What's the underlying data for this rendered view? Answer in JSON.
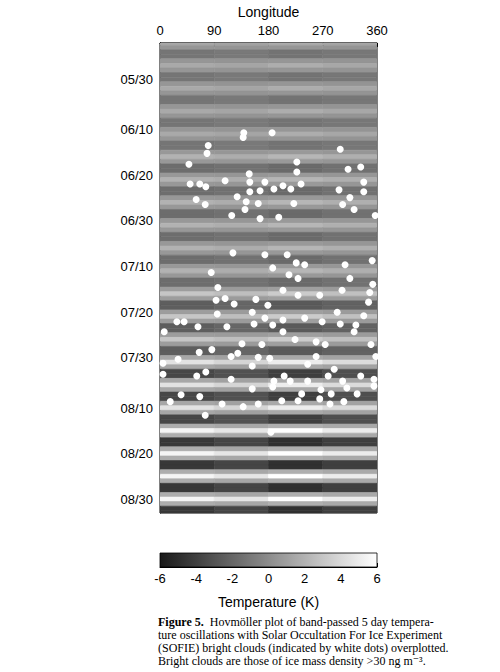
{
  "chart_data": {
    "type": "heatmap",
    "xlabel": "Longitude",
    "xlim": [
      0,
      360
    ],
    "xticks": [
      0,
      90,
      180,
      270,
      360
    ],
    "ylim": [
      142,
      245
    ],
    "yticks": [
      {
        "value": 150,
        "label": "05/30"
      },
      {
        "value": 161,
        "label": "06/10"
      },
      {
        "value": 171,
        "label": "06/20"
      },
      {
        "value": 181,
        "label": "06/30"
      },
      {
        "value": 191,
        "label": "07/10"
      },
      {
        "value": 201,
        "label": "07/20"
      },
      {
        "value": 211,
        "label": "07/30"
      },
      {
        "value": 222,
        "label": "08/10"
      },
      {
        "value": 232,
        "label": "08/20"
      },
      {
        "value": 242,
        "label": "08/30"
      }
    ],
    "grid": false,
    "heatmap": {
      "x": [
        45,
        135,
        225,
        315
      ],
      "y": [
        142,
        143,
        144,
        145,
        146,
        147,
        148,
        149,
        150,
        151,
        152,
        153,
        154,
        155,
        156,
        157,
        158,
        159,
        160,
        161,
        162,
        163,
        164,
        165,
        166,
        167,
        168,
        169,
        170,
        171,
        172,
        173,
        174,
        175,
        176,
        177,
        178,
        179,
        180,
        181,
        182,
        183,
        184,
        185,
        186,
        187,
        188,
        189,
        190,
        191,
        192,
        193,
        194,
        195,
        196,
        197,
        198,
        199,
        200,
        201,
        202,
        203,
        204,
        205,
        206,
        207,
        208,
        209,
        210,
        211,
        212,
        213,
        214,
        215,
        216,
        217,
        218,
        219,
        220,
        221,
        222,
        223,
        224,
        225,
        226,
        227,
        228,
        229,
        230,
        231,
        232,
        233,
        234,
        235,
        236,
        237,
        238,
        239,
        240,
        241,
        242,
        243,
        244,
        245
      ],
      "values": [
        [
          1.5,
          1.3,
          1.7,
          1.4
        ],
        [
          0.5,
          0.4,
          0.5,
          0.4
        ],
        [
          -1.2,
          -1,
          -1.3,
          -1.1
        ],
        [
          -1.2,
          -1,
          -1.3,
          -1.1
        ],
        [
          0.5,
          0.4,
          0.5,
          0.4
        ],
        [
          1.5,
          1.3,
          1.7,
          1.4
        ],
        [
          0.5,
          0.4,
          0.5,
          0.4
        ],
        [
          -1.2,
          -1,
          -1.3,
          -1.1
        ],
        [
          -1.2,
          -1,
          -1.3,
          -1.1
        ],
        [
          0.5,
          0.4,
          0.5,
          0.4
        ],
        [
          1.5,
          1.3,
          1.7,
          1.4
        ],
        [
          0.5,
          0.4,
          0.5,
          0.4
        ],
        [
          -1.2,
          -1,
          -1.3,
          -1.1
        ],
        [
          -1.2,
          -1,
          -1.3,
          -1.1
        ],
        [
          0.5,
          0.4,
          0.5,
          0.4
        ],
        [
          1.5,
          1.3,
          1.7,
          1.4
        ],
        [
          0.5,
          0.4,
          0.5,
          0.4
        ],
        [
          -1.2,
          -1,
          -1.3,
          -1.1
        ],
        [
          -1.2,
          -1,
          -1.3,
          -1.1
        ],
        [
          0.5,
          0.4,
          0.5,
          0.4
        ],
        [
          1.5,
          1.3,
          1.7,
          1.4
        ],
        [
          0.5,
          0.4,
          0.5,
          0.4
        ],
        [
          -1.2,
          -1,
          -1.3,
          -1.1
        ],
        [
          -1.2,
          -1,
          -1.3,
          -1.1
        ],
        [
          0.6,
          0.5,
          0.7,
          0.5
        ],
        [
          2,
          1.7,
          2.2,
          1.8
        ],
        [
          0.6,
          0.5,
          0.7,
          0.5
        ],
        [
          -1.6,
          -1.4,
          -1.8,
          -1.4
        ],
        [
          -1.6,
          -1.4,
          -1.8,
          -1.4
        ],
        [
          0.6,
          0.5,
          0.7,
          0.5
        ],
        [
          2,
          1.7,
          2.2,
          1.8
        ],
        [
          0.6,
          0.5,
          0.7,
          0.5
        ],
        [
          -1.6,
          -1.4,
          -1.8,
          -1.4
        ],
        [
          -1.6,
          -1.4,
          -1.8,
          -1.4
        ],
        [
          0.6,
          0.5,
          0.7,
          0.5
        ],
        [
          2,
          1.7,
          2.2,
          1.8
        ],
        [
          0.6,
          0.5,
          0.7,
          0.5
        ],
        [
          -1.6,
          -1.4,
          -1.8,
          -1.4
        ],
        [
          -1.6,
          -1.4,
          -1.8,
          -1.4
        ],
        [
          0.6,
          0.5,
          0.7,
          0.5
        ],
        [
          2,
          1.7,
          2.2,
          1.8
        ],
        [
          0.6,
          0.5,
          0.7,
          0.5
        ],
        [
          -1.6,
          -1.4,
          -1.8,
          -1.4
        ],
        [
          -1.6,
          -1.4,
          -1.8,
          -1.4
        ],
        [
          0.6,
          0.5,
          0.7,
          0.5
        ],
        [
          2,
          1.7,
          2.2,
          1.8
        ],
        [
          0.6,
          0.5,
          0.7,
          0.5
        ],
        [
          -1.6,
          -1.4,
          -1.8,
          -1.4
        ],
        [
          -1.6,
          -1.4,
          -1.8,
          -1.4
        ],
        [
          0.6,
          0.5,
          0.7,
          0.5
        ],
        [
          2,
          1.7,
          2.2,
          1.8
        ],
        [
          0.6,
          0.5,
          0.7,
          0.5
        ],
        [
          -1.6,
          -1.4,
          -1.8,
          -1.4
        ],
        [
          -1.6,
          -1.4,
          -1.8,
          -1.4
        ],
        [
          0.9,
          0.8,
          1,
          0.8
        ],
        [
          3,
          2.6,
          3.3,
          2.7
        ],
        [
          0.9,
          0.8,
          1,
          0.8
        ],
        [
          -2.4,
          -2,
          -2.6,
          -2.2
        ],
        [
          -2.4,
          -2,
          -2.6,
          -2.2
        ],
        [
          0.9,
          0.8,
          1,
          0.8
        ],
        [
          3,
          2.6,
          3.3,
          2.7
        ],
        [
          0.9,
          0.8,
          1,
          0.8
        ],
        [
          -2.4,
          -2,
          -2.6,
          -2.2
        ],
        [
          -2.4,
          -2,
          -2.6,
          -2.2
        ],
        [
          0.9,
          0.8,
          1,
          0.8
        ],
        [
          3,
          2.6,
          3.3,
          2.7
        ],
        [
          0.9,
          0.8,
          1,
          0.8
        ],
        [
          -2.4,
          -2,
          -2.6,
          -2.2
        ],
        [
          -2.4,
          -2,
          -2.6,
          -2.2
        ],
        [
          1.4,
          1.1,
          1.5,
          1.2
        ],
        [
          4.5,
          3.8,
          5,
          4.1
        ],
        [
          1.4,
          1.1,
          1.5,
          1.2
        ],
        [
          -3.6,
          -3.1,
          -4,
          -3.2
        ],
        [
          -3.6,
          -3.1,
          -4,
          -3.2
        ],
        [
          1.4,
          1.1,
          1.5,
          1.2
        ],
        [
          4.5,
          3.8,
          5,
          4.1
        ],
        [
          1.4,
          1.1,
          1.5,
          1.2
        ],
        [
          -3.6,
          -3.1,
          -4,
          -3.2
        ],
        [
          -3.6,
          -3.1,
          -4,
          -3.2
        ],
        [
          1.4,
          1.1,
          1.5,
          1.2
        ],
        [
          4.5,
          3.8,
          5,
          4.1
        ],
        [
          1.4,
          1.1,
          1.5,
          1.2
        ],
        [
          -3.6,
          -3.1,
          -4,
          -3.2
        ],
        [
          -3.6,
          -3.1,
          -4,
          -3.2
        ],
        [
          1.7,
          1.4,
          1.8,
          1.5
        ],
        [
          5.5,
          4.7,
          6,
          5
        ],
        [
          1.7,
          1.4,
          1.8,
          1.5
        ],
        [
          -4.4,
          -3.7,
          -4.8,
          -4
        ],
        [
          -4.4,
          -3.7,
          -4.8,
          -4
        ],
        [
          1.7,
          1.4,
          1.8,
          1.5
        ],
        [
          5.5,
          4.7,
          6,
          5
        ],
        [
          1.7,
          1.4,
          1.8,
          1.5
        ],
        [
          -4.4,
          -3.7,
          -4.8,
          -4
        ],
        [
          -4.4,
          -3.7,
          -4.8,
          -4
        ],
        [
          1.7,
          1.4,
          1.8,
          1.5
        ],
        [
          5.5,
          4.7,
          6,
          5
        ],
        [
          1.7,
          1.4,
          1.8,
          1.5
        ],
        [
          -4.4,
          -3.7,
          -4.8,
          -4
        ],
        [
          -4.4,
          -3.7,
          -4.8,
          -4
        ],
        [
          1.7,
          1.4,
          1.8,
          1.5
        ],
        [
          5.5,
          4.7,
          6,
          5
        ],
        [
          1.7,
          1.4,
          1.8,
          1.5
        ],
        [
          -4.4,
          -3.7,
          -4.8,
          -4
        ],
        [
          -4.4,
          -3.7,
          -4.8,
          -4
        ]
      ]
    },
    "points": {
      "type": "scatter",
      "color": "#ffffff",
      "marker": "circle",
      "x": [
        48,
        80,
        78,
        50,
        66,
        76,
        60,
        75,
        108,
        128,
        119,
        139,
        138,
        148,
        149,
        149,
        143,
        141,
        166,
        174,
        163,
        189,
        186,
        204,
        217,
        227,
        227,
        234,
        222,
        197,
        166,
        299,
        312,
        297,
        315,
        303,
        333,
        338,
        338,
        322,
        357,
        121,
        85,
        174,
        211,
        226,
        187,
        214,
        229,
        240,
        204,
        229,
        265,
        307,
        315,
        302,
        353,
        348,
        346,
        352,
        338,
        96,
        108,
        93,
        123,
        95,
        111,
        63,
        28,
        40,
        7,
        159,
        179,
        153,
        156,
        174,
        187,
        204,
        204,
        240,
        269,
        294,
        299,
        325,
        322,
        350,
        358,
        259,
        274,
        224,
        169,
        136,
        129,
        86,
        65,
        30,
        5,
        5,
        76,
        61,
        118,
        163,
        153,
        182,
        206,
        245,
        259,
        279,
        289,
        303,
        333,
        355,
        355,
        118,
        189,
        187,
        216,
        235,
        245,
        267,
        284,
        310,
        327,
        153,
        163,
        138,
        103,
        35,
        66,
        75,
        202,
        229,
        265,
        282,
        305,
        184,
        17
      ],
      "y": [
        168.6,
        164.5,
        166.2,
        172.9,
        172.9,
        173.5,
        176.3,
        177.4,
        172.2,
        175.7,
        179.8,
        161.7,
        162.7,
        170.7,
        172.5,
        174.6,
        176.8,
        178.5,
        174.4,
        172.5,
        177.2,
        174,
        161.7,
        173.3,
        174,
        168.1,
        170.3,
        172.9,
        177.2,
        180.2,
        180.5,
        165.3,
        169.7,
        174.2,
        175.9,
        177.4,
        169.2,
        172.5,
        174.6,
        178.5,
        179.8,
        188,
        192.3,
        188.4,
        188.4,
        190.2,
        191.3,
        192.8,
        193.6,
        190.6,
        196.2,
        197.3,
        197.3,
        190.6,
        193.6,
        196.2,
        194.9,
        196.7,
        198.8,
        189.7,
        201.8,
        195.6,
        198,
        198.4,
        199.2,
        201.4,
        204.2,
        204.2,
        203.1,
        203.1,
        205.3,
        198.2,
        199.5,
        201,
        203.6,
        202.3,
        203.8,
        202.7,
        205.3,
        202.3,
        203.1,
        201,
        203.6,
        203.8,
        205.3,
        208.1,
        210.7,
        207.5,
        208.1,
        207,
        208.1,
        207.9,
        210,
        209.2,
        209.8,
        211.3,
        212.2,
        214.6,
        214.1,
        215,
        210.7,
        210.9,
        212.8,
        211.1,
        215,
        212.4,
        210.7,
        215,
        213.5,
        216.1,
        215,
        215.7,
        217.2,
        215.7,
        216.1,
        217.4,
        216.1,
        218.9,
        216.1,
        218,
        218.9,
        217.6,
        218.9,
        217.8,
        221.1,
        221.7,
        221.1,
        219.1,
        219.5,
        223.6,
        220.4,
        220.4,
        220,
        221.1,
        220.6,
        227.3,
        220.6
      ]
    },
    "colorbar": {
      "range": [
        -6,
        6
      ],
      "ticks": [
        -6,
        -4,
        -2,
        0,
        2,
        4,
        6
      ],
      "label": "Temperature (K)"
    },
    "caption": {
      "label": "Figure 5.",
      "lines": [
        "Hovmöller plot of band-passed 5 day tempera-",
        "ture oscillations with Solar Occultation For Ice Experiment",
        "(SOFIE) bright clouds (indicated by white dots) overplotted.",
        "Bright clouds are those of ice mass density >30 ng m⁻³."
      ]
    }
  }
}
